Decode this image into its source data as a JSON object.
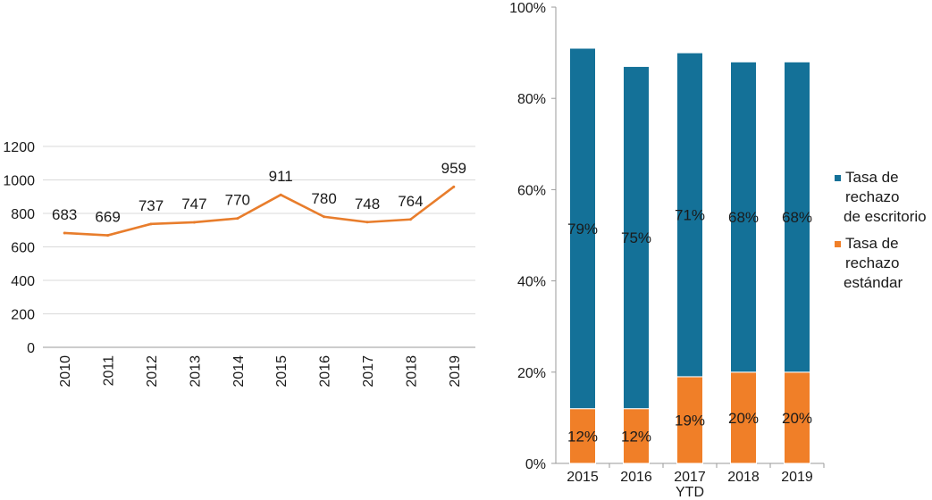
{
  "chart_data": [
    {
      "type": "line",
      "title": "",
      "xlabel": "",
      "ylabel": "",
      "categories": [
        "2010",
        "2011",
        "2012",
        "2013",
        "2014",
        "2015",
        "2016",
        "2017",
        "2018",
        "2019"
      ],
      "values": [
        683,
        669,
        737,
        747,
        770,
        911,
        780,
        748,
        764,
        959
      ],
      "data_labels": [
        "683",
        "669",
        "737",
        "747",
        "770",
        "911",
        "780",
        "748",
        "764",
        "959"
      ],
      "ylim": [
        0,
        1200
      ],
      "yticks": [
        "0",
        "200",
        "400",
        "600",
        "800",
        "1000",
        "1200"
      ],
      "grid": true,
      "color": "#E87D2C"
    },
    {
      "type": "bar",
      "stacked": true,
      "categories": [
        "2015",
        "2016",
        "2017",
        "2018",
        "2019"
      ],
      "category_lines": [
        [
          "2015"
        ],
        [
          "2016"
        ],
        [
          "2017",
          "YTD"
        ],
        [
          "2018"
        ],
        [
          "2019"
        ]
      ],
      "series": [
        {
          "name": "Tasa de rechazo estándar",
          "legend_lines": [
            "Tasa de",
            "rechazo",
            "estándar"
          ],
          "values": [
            12,
            12,
            19,
            20,
            20
          ],
          "labels": [
            "12%",
            "12%",
            "19%",
            "20%",
            "20%"
          ],
          "color": "#F07F28"
        },
        {
          "name": "Tasa de rechazo de escritorio",
          "legend_lines": [
            "Tasa de",
            "rechazo",
            "de escritorio"
          ],
          "values": [
            79,
            75,
            71,
            68,
            68
          ],
          "labels": [
            "79%",
            "75%",
            "71%",
            "68%",
            "68%"
          ],
          "color": "#147198"
        }
      ],
      "ylim": [
        0,
        100
      ],
      "yticks": [
        "0%",
        "20%",
        "40%",
        "60%",
        "80%",
        "100%"
      ],
      "legend_position": "right",
      "grid": false
    }
  ]
}
